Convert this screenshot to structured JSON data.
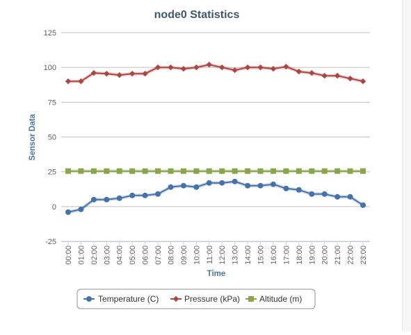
{
  "chart_data": {
    "type": "line",
    "title": "node0 Statistics",
    "xlabel": "Time",
    "ylabel": "Sensor Data",
    "ylim": [
      -25,
      125
    ],
    "yticks": [
      125,
      100,
      75,
      50,
      25,
      0,
      -25
    ],
    "grid": true,
    "legend_position": "bottom-center",
    "categories": [
      "00:00",
      "01:00",
      "02:00",
      "03:00",
      "04:00",
      "05:00",
      "06:00",
      "07:00",
      "08:00",
      "09:00",
      "10:00",
      "11:00",
      "12:00",
      "13:00",
      "14:00",
      "15:00",
      "16:00",
      "17:00",
      "18:00",
      "19:00",
      "20:00",
      "21:00",
      "22:00",
      "23:00"
    ],
    "series": [
      {
        "name": "Temperature (C)",
        "color": "#4572a7",
        "marker": "circle",
        "values": [
          -4,
          -2,
          5,
          5,
          6,
          8,
          8,
          9,
          14,
          15,
          14,
          17,
          17,
          18,
          15,
          15,
          16,
          13,
          12,
          9,
          9,
          7,
          7,
          1
        ]
      },
      {
        "name": "Pressure (kPa)",
        "color": "#aa4643",
        "marker": "diamond",
        "values": [
          90,
          90,
          96,
          95.5,
          94.5,
          95.5,
          95.5,
          100,
          100,
          99,
          100,
          102,
          100,
          98,
          100,
          100,
          99,
          100.5,
          97,
          96,
          94,
          94,
          92,
          90
        ]
      },
      {
        "name": "Altitude (m)",
        "color": "#89a54e",
        "marker": "square",
        "values": [
          25.5,
          25.5,
          25.5,
          25.5,
          25.5,
          25.5,
          25.5,
          25.5,
          25.5,
          25.5,
          25.5,
          25.5,
          25.5,
          25.5,
          25.5,
          25.5,
          25.5,
          25.5,
          25.5,
          25.5,
          25.5,
          25.5,
          25.5,
          25.5
        ]
      }
    ]
  }
}
